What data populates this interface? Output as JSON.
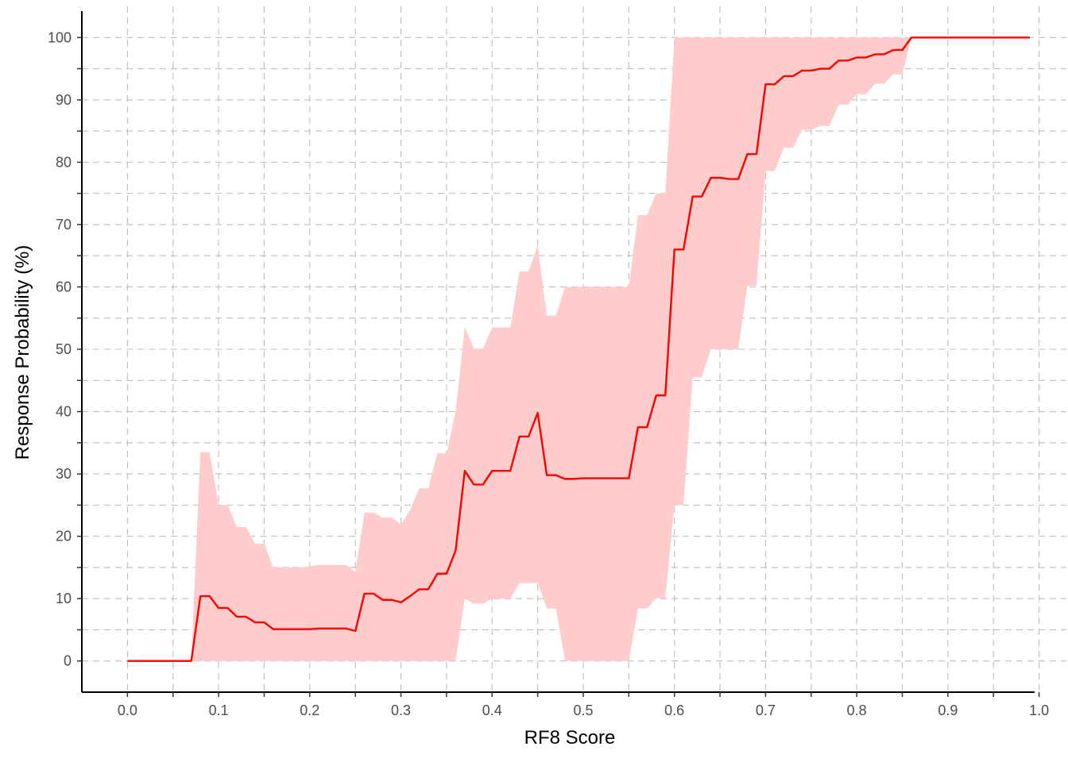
{
  "chart_data": {
    "type": "line",
    "title": "",
    "xlabel": "RF8 Score",
    "ylabel": "Response Probability (%)",
    "xlim": [
      -0.05,
      1.03
    ],
    "ylim": [
      -5,
      105
    ],
    "x_ticks": [
      0.0,
      0.1,
      0.2,
      0.3,
      0.4,
      0.5,
      0.6,
      0.7,
      0.8,
      0.9,
      1.0
    ],
    "x_tick_labels": [
      "0.0",
      "0.1",
      "0.2",
      "0.3",
      "0.4",
      "0.5",
      "0.6",
      "0.7",
      "0.8",
      "0.9",
      "1.0"
    ],
    "x_minor_ticks": [
      0.05,
      0.15,
      0.25,
      0.35,
      0.45,
      0.55,
      0.65,
      0.75,
      0.85,
      0.95
    ],
    "y_ticks": [
      0,
      10,
      20,
      30,
      40,
      50,
      60,
      70,
      80,
      90,
      100
    ],
    "y_tick_labels": [
      "0",
      "10",
      "20",
      "30",
      "40",
      "50",
      "60",
      "70",
      "80",
      "90",
      "100"
    ],
    "y_minor_ticks": [
      5,
      15,
      25,
      35,
      45,
      55,
      65,
      75,
      85,
      95
    ],
    "grid": true,
    "colors": {
      "line": "#ff0000",
      "band": "#ffcccc",
      "grid": "#bdbdbd"
    },
    "series": [
      {
        "x": [
          0.0,
          0.07,
          0.08,
          0.09,
          0.1,
          0.11,
          0.12,
          0.13,
          0.14,
          0.15,
          0.16,
          0.17,
          0.18,
          0.19,
          0.2,
          0.21,
          0.22,
          0.23,
          0.24,
          0.25,
          0.26,
          0.27,
          0.28,
          0.29,
          0.3,
          0.31,
          0.32,
          0.33,
          0.34,
          0.35,
          0.36,
          0.37,
          0.38,
          0.39,
          0.4,
          0.41,
          0.42,
          0.43,
          0.44,
          0.45,
          0.46,
          0.47,
          0.48,
          0.49,
          0.5,
          0.51,
          0.52,
          0.53,
          0.54,
          0.55,
          0.56,
          0.57,
          0.58,
          0.59,
          0.6,
          0.61,
          0.62,
          0.63,
          0.64,
          0.65,
          0.66,
          0.67,
          0.68,
          0.69,
          0.7,
          0.71,
          0.72,
          0.73,
          0.74,
          0.75,
          0.76,
          0.77,
          0.78,
          0.79,
          0.8,
          0.81,
          0.82,
          0.83,
          0.84,
          0.85,
          0.86,
          0.87,
          0.9,
          0.95,
          0.99
        ],
        "y": [
          0,
          0,
          10.4,
          10.4,
          8.5,
          8.5,
          7.1,
          7.1,
          6.2,
          6.2,
          5.1,
          5.1,
          5.1,
          5.1,
          5.1,
          5.2,
          5.2,
          5.2,
          5.2,
          4.8,
          10.8,
          10.8,
          9.8,
          9.8,
          9.4,
          10.4,
          11.5,
          11.5,
          14.0,
          14.0,
          17.7,
          30.5,
          28.3,
          28.3,
          30.5,
          30.5,
          30.5,
          36.0,
          36.0,
          39.8,
          29.8,
          29.8,
          29.2,
          29.2,
          29.3,
          29.3,
          29.3,
          29.3,
          29.3,
          29.3,
          37.5,
          37.5,
          42.6,
          42.6,
          66.0,
          66.0,
          74.5,
          74.5,
          77.5,
          77.5,
          77.3,
          77.3,
          81.3,
          81.3,
          92.5,
          92.5,
          93.8,
          93.8,
          94.7,
          94.7,
          95.0,
          95.0,
          96.3,
          96.3,
          96.8,
          96.8,
          97.3,
          97.3,
          98.0,
          98.0,
          100,
          100,
          100,
          100,
          100
        ],
        "lower": [
          0,
          0,
          0,
          0,
          0,
          0,
          0,
          0,
          0,
          0,
          0,
          0,
          0,
          0,
          0,
          0,
          0,
          0,
          0,
          0,
          0,
          0,
          0,
          0,
          0,
          0,
          0,
          0,
          0,
          0,
          0,
          10.0,
          9.2,
          9.2,
          10.0,
          10.0,
          10.0,
          12.5,
          12.5,
          12.5,
          8.4,
          8.4,
          0,
          0,
          0,
          0,
          0,
          0,
          0,
          0,
          8.4,
          8.4,
          10.1,
          10.1,
          25.0,
          25.0,
          45.5,
          45.5,
          50.0,
          50.0,
          50.0,
          50.0,
          60.2,
          60.2,
          78.6,
          78.6,
          82.3,
          82.3,
          85.2,
          85.2,
          85.8,
          85.8,
          89.2,
          89.2,
          90.9,
          90.9,
          92.6,
          92.6,
          94.1,
          94.1,
          100,
          100,
          100,
          100,
          100
        ],
        "upper": [
          0,
          0,
          33.5,
          33.5,
          25.0,
          25.0,
          21.5,
          21.5,
          18.8,
          18.8,
          15.0,
          15.0,
          15.0,
          15.0,
          15.2,
          15.4,
          15.4,
          15.4,
          15.4,
          14.3,
          23.8,
          23.8,
          23.0,
          23.0,
          21.9,
          24.2,
          27.7,
          27.7,
          33.3,
          33.3,
          40.0,
          53.6,
          50.1,
          50.1,
          53.5,
          53.5,
          53.5,
          62.5,
          62.5,
          66.7,
          55.4,
          55.4,
          60.0,
          60.0,
          60.0,
          60.0,
          60.0,
          60.0,
          60.0,
          60.0,
          71.5,
          71.5,
          75.0,
          75.0,
          100,
          100,
          100,
          100,
          100,
          100,
          100,
          100,
          100,
          100,
          100,
          100,
          100,
          100,
          100,
          100,
          100,
          100,
          100,
          100,
          100,
          100,
          100,
          100,
          100,
          100,
          100,
          100,
          100,
          100,
          100
        ]
      }
    ]
  }
}
